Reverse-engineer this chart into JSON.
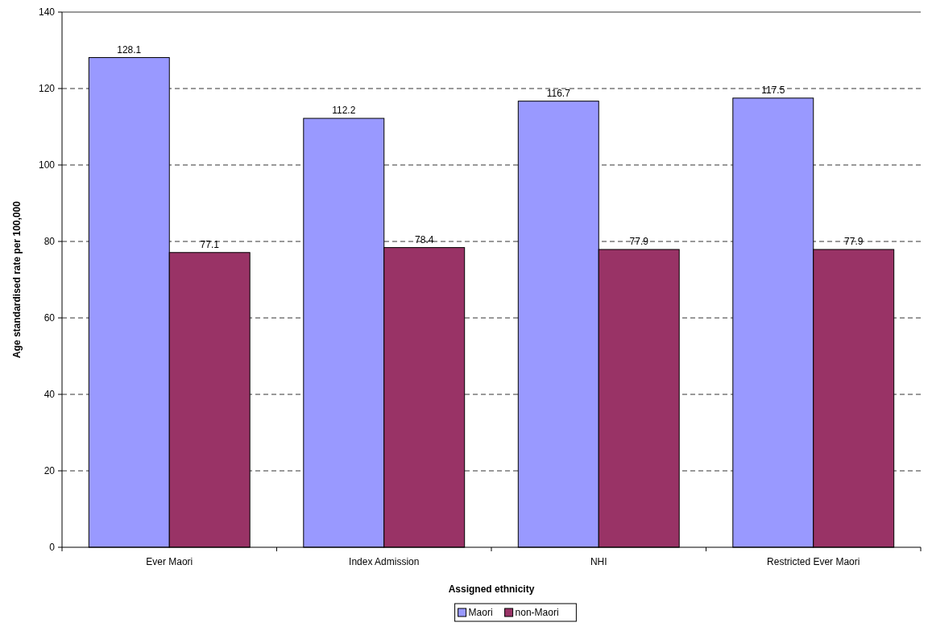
{
  "chart_data": {
    "type": "bar",
    "xlabel": "Assigned ethnicity",
    "ylabel": "Age standardised rate per 100,000",
    "categories": [
      "Ever Maori",
      "Index Admission",
      "NHI",
      "Restricted Ever Maori"
    ],
    "series": [
      {
        "name": "Maori",
        "color": "#9999ff",
        "values": [
          128.1,
          112.2,
          116.7,
          117.5
        ]
      },
      {
        "name": "non-Maori",
        "color": "#993366",
        "values": [
          77.1,
          78.4,
          77.9,
          77.9
        ]
      }
    ],
    "ylim": [
      0,
      140
    ],
    "yticks": [
      0,
      20,
      40,
      60,
      80,
      100,
      120,
      140
    ],
    "grid": "y",
    "data_labels": true,
    "legend": "bottom"
  }
}
